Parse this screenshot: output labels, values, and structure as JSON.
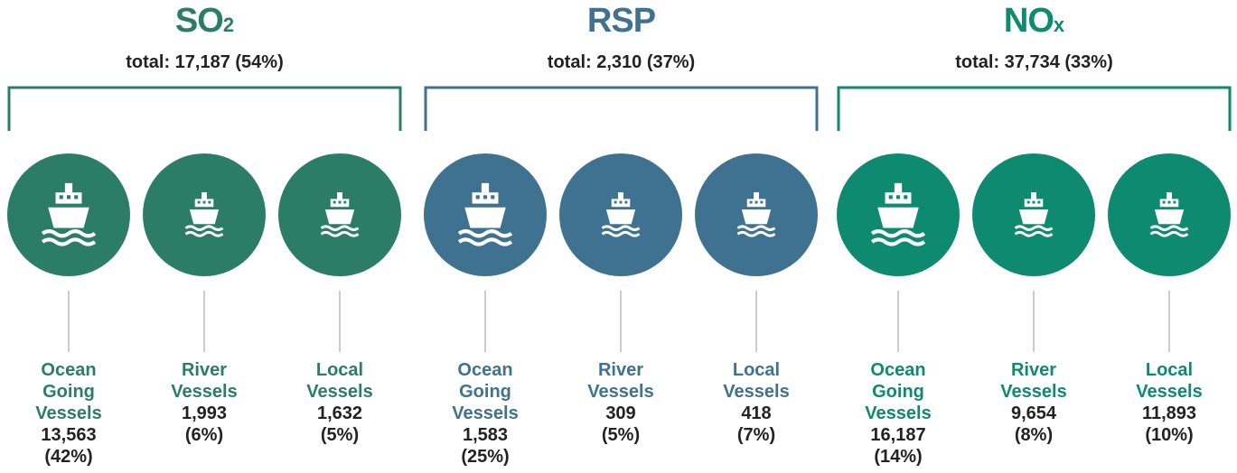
{
  "groups": [
    {
      "title": "SO",
      "subscript": "2",
      "total": "total: 17,187 (54%)",
      "color": "#2b7d68",
      "items": [
        {
          "label": "Ocean Going Vessels",
          "value": "13,563",
          "share": "(42%)"
        },
        {
          "label": "River Vessels",
          "value": "1,993",
          "share": "(6%)"
        },
        {
          "label": "Local Vessels",
          "value": "1,632",
          "share": "(5%)"
        }
      ]
    },
    {
      "title": "RSP",
      "total": "total: 2,310 (37%)",
      "color": "#3f7290",
      "items": [
        {
          "label": "Ocean Going Vessels",
          "value": "1,583",
          "share": "(25%)"
        },
        {
          "label": "River Vessels",
          "value": "309",
          "share": "(5%)"
        },
        {
          "label": "Local Vessels",
          "value": "418",
          "share": "(7%)"
        }
      ]
    },
    {
      "title": "NO",
      "subscript": "x",
      "total": "total: 37,734 (33%)",
      "color": "#0e8a70",
      "items": [
        {
          "label": "Ocean Going Vessels",
          "value": "16,187",
          "share": "(14%)"
        },
        {
          "label": "River Vessels",
          "value": "9,654",
          "share": "(8%)"
        },
        {
          "label": "Local Vessels",
          "value": "11,893",
          "share": "(10%)"
        }
      ]
    }
  ]
}
